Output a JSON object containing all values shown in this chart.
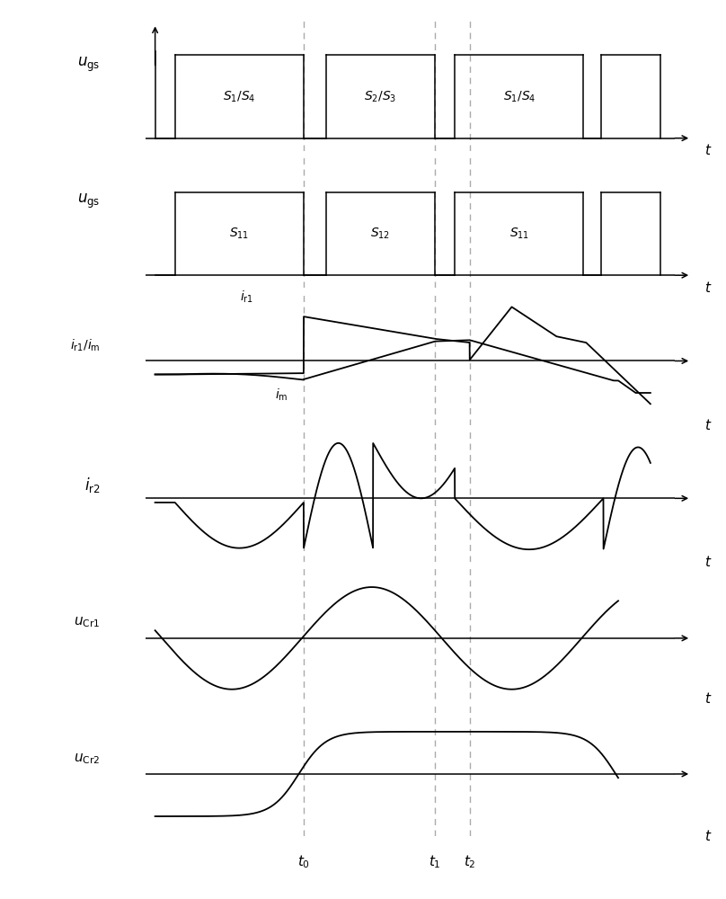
{
  "fig_width": 8.08,
  "fig_height": 10.0,
  "bg_color": "#ffffff",
  "line_color": "#000000",
  "dashed_color": "#aaaaaa",
  "n_panels": 6,
  "t0": 0.3,
  "t1": 0.565,
  "t2": 0.635,
  "panel_labels": [
    "ugs_top",
    "ugs_bot",
    "ir1_im",
    "ir2",
    "ucr1",
    "ucr2"
  ]
}
